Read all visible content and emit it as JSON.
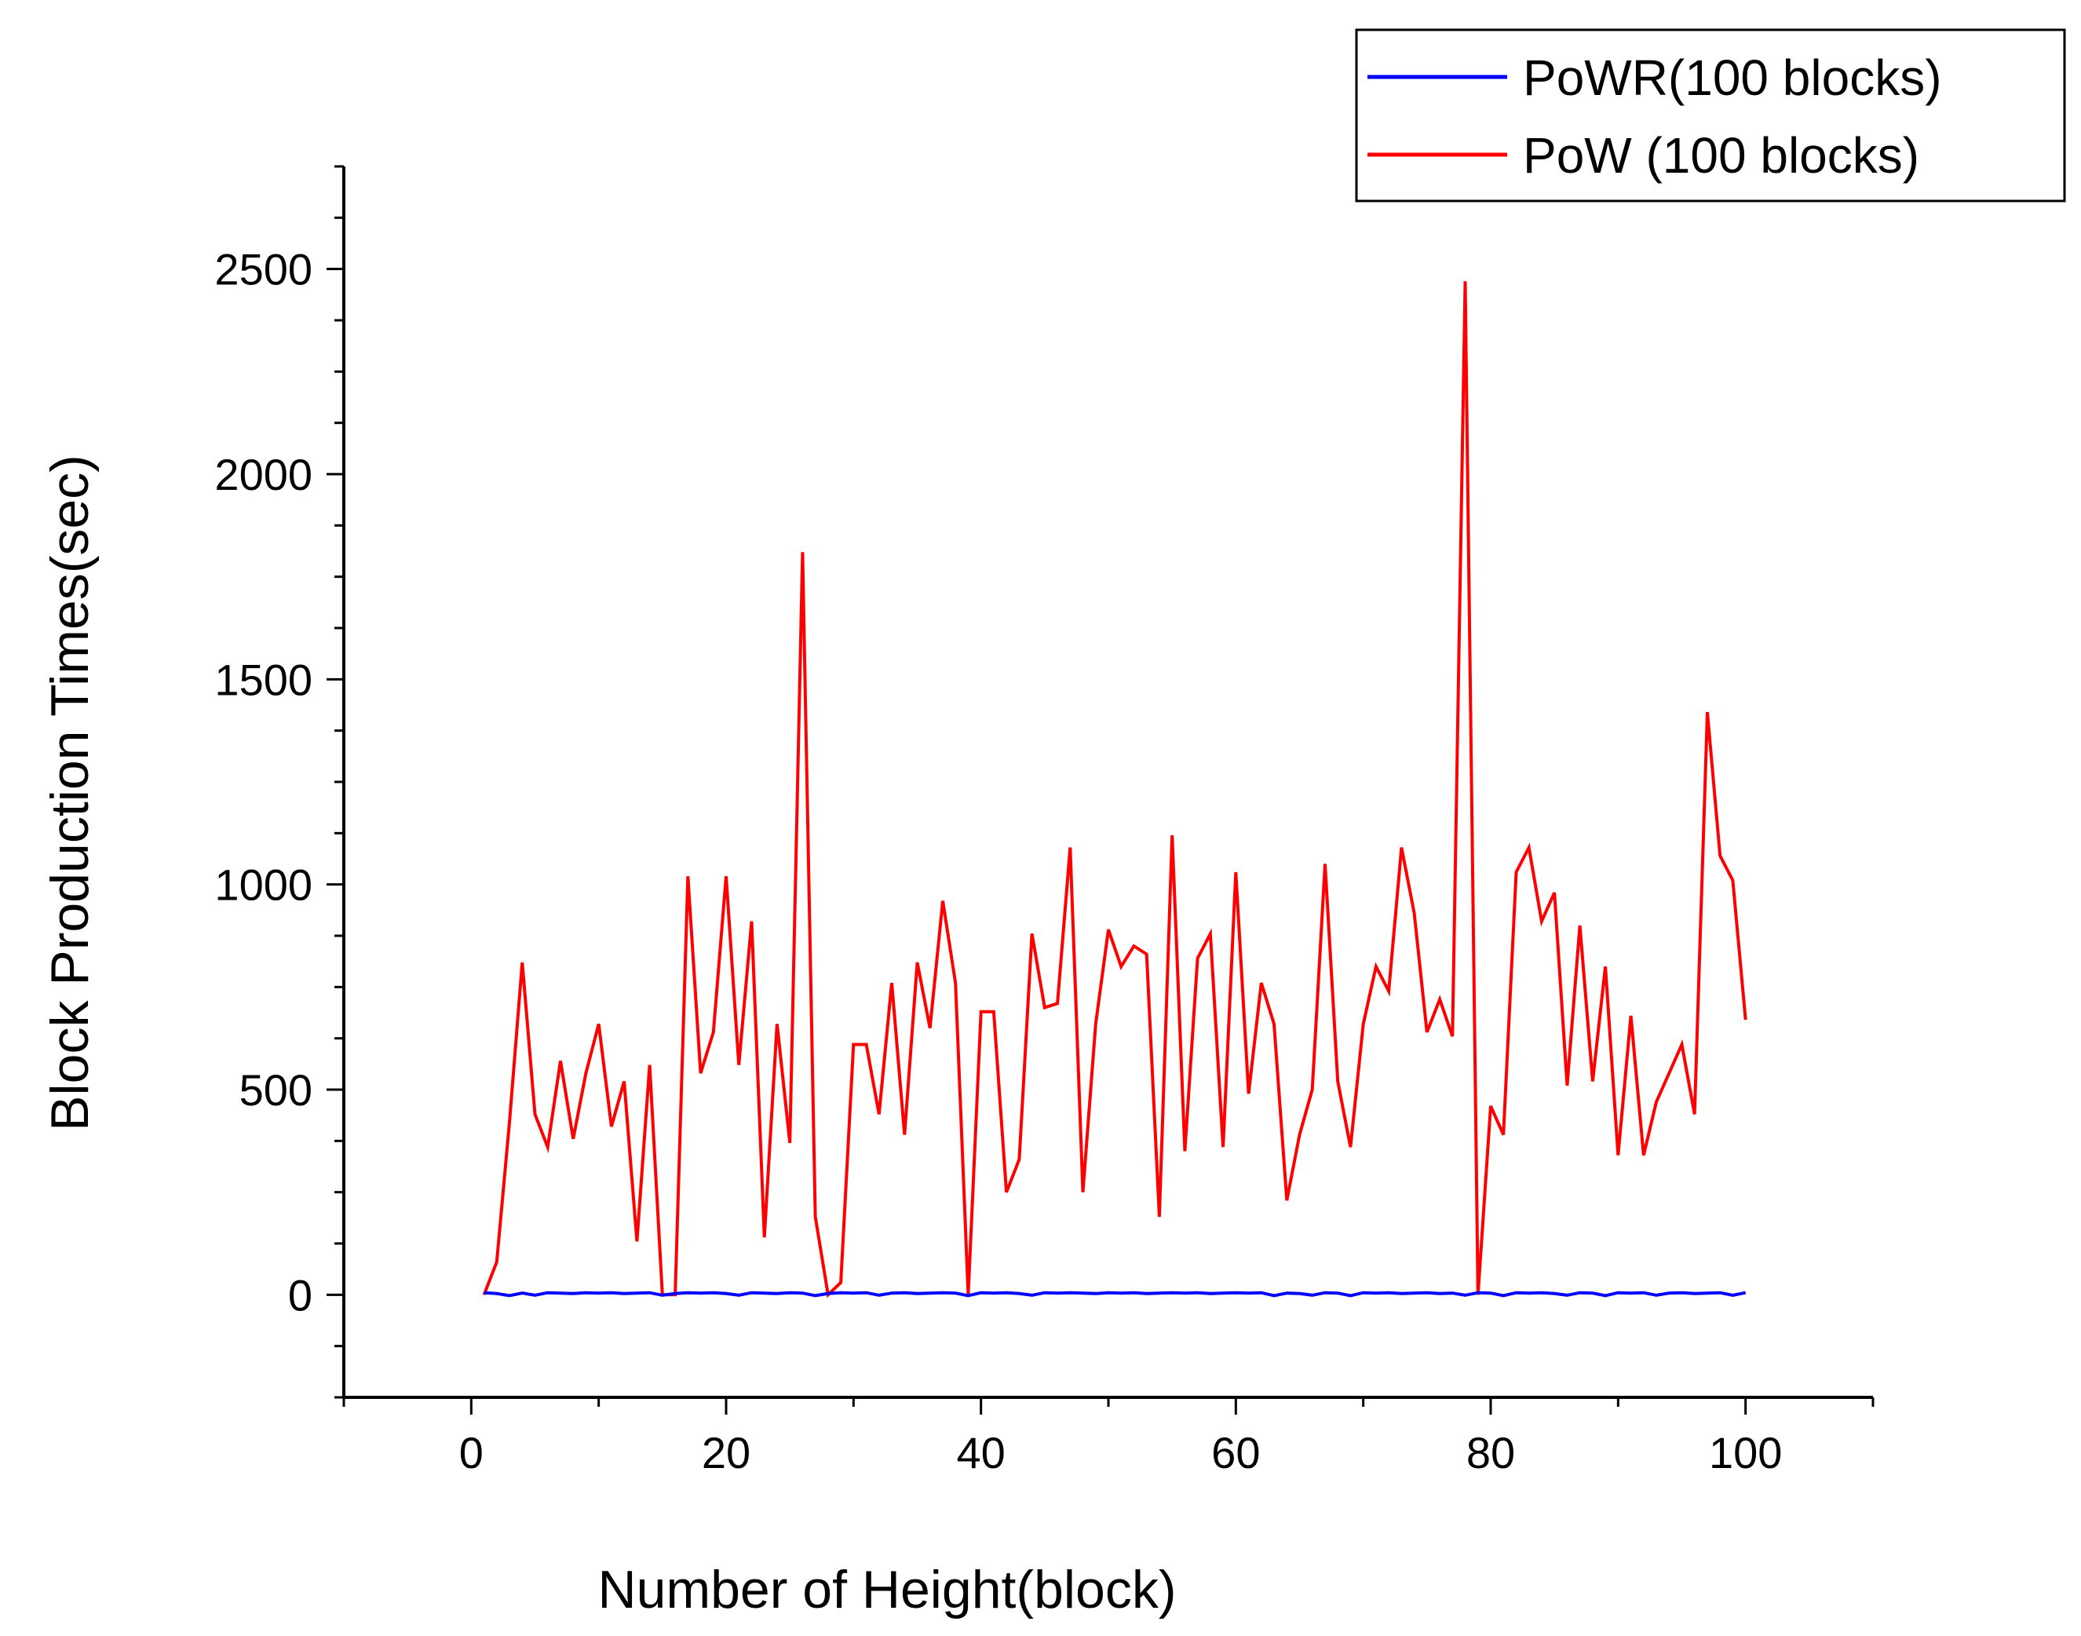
{
  "chart_data": {
    "type": "line",
    "title": "",
    "xlabel": "Number of Height(block)",
    "ylabel": "Block Production Times(sec)",
    "xlim": [
      -10,
      110
    ],
    "ylim": [
      -250,
      2750
    ],
    "x_ticks": [
      0,
      20,
      40,
      60,
      80,
      100
    ],
    "y_ticks": [
      0,
      500,
      1000,
      1500,
      2000,
      2500
    ],
    "grid": false,
    "legend_position": "top-right",
    "series": [
      {
        "name": "PoWR(100 blocks)",
        "color": "#0000ff",
        "x": [
          1,
          2,
          3,
          4,
          5,
          6,
          7,
          8,
          9,
          10,
          11,
          12,
          13,
          14,
          15,
          16,
          17,
          18,
          19,
          20,
          21,
          22,
          23,
          24,
          25,
          26,
          27,
          28,
          29,
          30,
          31,
          32,
          33,
          34,
          35,
          36,
          37,
          38,
          39,
          40,
          41,
          42,
          43,
          44,
          45,
          46,
          47,
          48,
          49,
          50,
          51,
          52,
          53,
          54,
          55,
          56,
          57,
          58,
          59,
          60,
          61,
          62,
          63,
          64,
          65,
          66,
          67,
          68,
          69,
          70,
          71,
          72,
          73,
          74,
          75,
          76,
          77,
          78,
          79,
          80,
          81,
          82,
          83,
          84,
          85,
          86,
          87,
          88,
          89,
          90,
          91,
          92,
          93,
          94,
          95,
          96,
          97,
          98,
          99,
          100
        ],
        "values": [
          5,
          3,
          -2,
          4,
          -1,
          5,
          4,
          3,
          5,
          4,
          5,
          3,
          4,
          5,
          -1,
          3,
          5,
          4,
          5,
          3,
          -1,
          5,
          4,
          3,
          5,
          4,
          -2,
          3,
          5,
          4,
          5,
          -1,
          4,
          5,
          3,
          4,
          5,
          4,
          -2,
          5,
          4,
          5,
          3,
          -1,
          5,
          4,
          5,
          4,
          3,
          5,
          4,
          5,
          3,
          4,
          5,
          4,
          5,
          3,
          4,
          5,
          4,
          5,
          -2,
          4,
          3,
          -1,
          5,
          4,
          -2,
          5,
          4,
          5,
          3,
          4,
          5,
          3,
          4,
          -1,
          5,
          4,
          -2,
          5,
          4,
          5,
          3,
          -1,
          5,
          4,
          -2,
          5,
          4,
          5,
          -1,
          4,
          5,
          3,
          4,
          5,
          -1,
          5
        ]
      },
      {
        "name": "PoW (100 blocks)",
        "color": "#ff0000",
        "x": [
          1,
          2,
          3,
          4,
          5,
          6,
          7,
          8,
          9,
          10,
          11,
          12,
          13,
          14,
          15,
          16,
          17,
          18,
          19,
          20,
          21,
          22,
          23,
          24,
          25,
          26,
          27,
          28,
          29,
          30,
          31,
          32,
          33,
          34,
          35,
          36,
          37,
          38,
          39,
          40,
          41,
          42,
          43,
          44,
          45,
          46,
          47,
          48,
          49,
          50,
          51,
          52,
          53,
          54,
          55,
          56,
          57,
          58,
          59,
          60,
          61,
          62,
          63,
          64,
          65,
          66,
          67,
          68,
          69,
          70,
          71,
          72,
          73,
          74,
          75,
          76,
          77,
          78,
          79,
          80,
          81,
          82,
          83,
          84,
          85,
          86,
          87,
          88,
          89,
          90,
          91,
          92,
          93,
          94,
          95,
          96,
          97,
          98,
          99,
          100
        ],
        "values": [
          0,
          80,
          420,
          810,
          440,
          360,
          570,
          380,
          540,
          660,
          410,
          520,
          130,
          560,
          0,
          0,
          1020,
          540,
          640,
          1020,
          560,
          910,
          140,
          660,
          370,
          1810,
          190,
          0,
          30,
          610,
          610,
          440,
          760,
          390,
          810,
          650,
          960,
          760,
          0,
          690,
          690,
          250,
          330,
          880,
          700,
          710,
          1090,
          250,
          660,
          890,
          800,
          850,
          830,
          190,
          1120,
          350,
          820,
          880,
          360,
          1030,
          490,
          760,
          660,
          230,
          390,
          500,
          1050,
          520,
          360,
          660,
          800,
          740,
          1090,
          930,
          640,
          720,
          630,
          2470,
          0,
          460,
          390,
          1030,
          1090,
          910,
          980,
          510,
          900,
          520,
          800,
          340,
          680,
          340,
          470,
          540,
          610,
          440,
          1420,
          1070,
          1010,
          670
        ]
      }
    ]
  }
}
